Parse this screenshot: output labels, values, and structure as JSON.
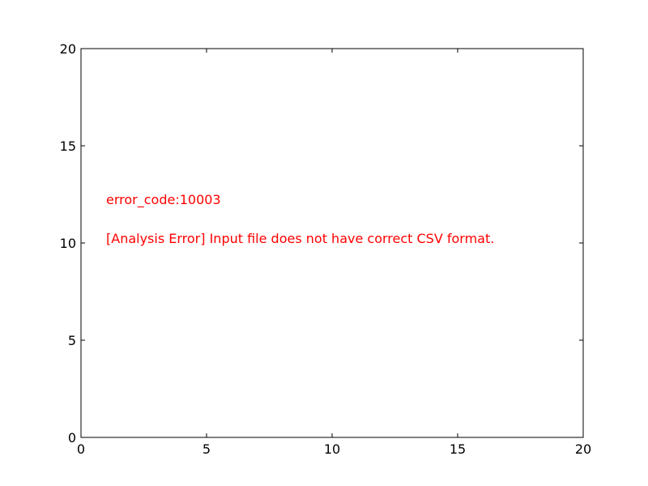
{
  "chart_data": {
    "type": "scatter",
    "title": "",
    "xlabel": "",
    "ylabel": "",
    "xlim": [
      0,
      20
    ],
    "ylim": [
      0,
      20
    ],
    "xticks": [
      0,
      5,
      10,
      15,
      20
    ],
    "yticks": [
      0,
      5,
      10,
      15,
      20
    ],
    "grid": false,
    "series": [],
    "annotations": [
      {
        "text": "error_code:10003",
        "x": 1,
        "y": 12,
        "color": "#ff0000"
      },
      {
        "text": "[Analysis Error] Input file does not have correct CSV format.",
        "x": 1,
        "y": 10,
        "color": "#ff0000"
      }
    ]
  }
}
